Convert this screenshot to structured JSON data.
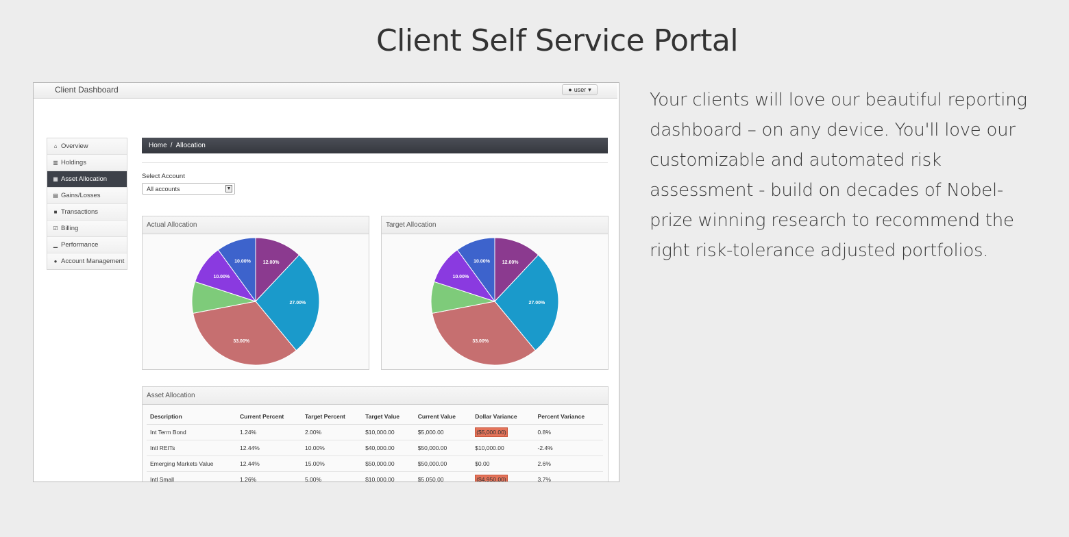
{
  "page": {
    "title": "Client Self Service Portal",
    "pitch": "Your clients will love our beautiful reporting dashboard – on any device. You'll love our customizable and automated risk assessment - build on decades of Nobel-prize winning research to recommend the right risk-tolerance adjusted portfolios."
  },
  "app": {
    "brand": "Client Dashboard",
    "user_label": "user"
  },
  "sidebar": {
    "items": [
      {
        "label": "Overview",
        "icon": "home-icon",
        "glyph": "⌂"
      },
      {
        "label": "Holdings",
        "icon": "bank-icon",
        "glyph": "▥"
      },
      {
        "label": "Asset Allocation",
        "icon": "grid-icon",
        "glyph": "▦"
      },
      {
        "label": "Gains/Losses",
        "icon": "list-icon",
        "glyph": "▤"
      },
      {
        "label": "Transactions",
        "icon": "book-icon",
        "glyph": "■"
      },
      {
        "label": "Billing",
        "icon": "check-icon",
        "glyph": "☑"
      },
      {
        "label": "Performance",
        "icon": "signal-icon",
        "glyph": "▁"
      },
      {
        "label": "Account Management",
        "icon": "user-icon",
        "glyph": "●"
      }
    ],
    "active_index": 2
  },
  "breadcrumb": {
    "home": "Home",
    "separator": "/",
    "current": "Allocation"
  },
  "account_select": {
    "label": "Select Account",
    "value": "All accounts"
  },
  "panels": {
    "actual": "Actual Allocation",
    "target": "Target Allocation",
    "table": "Asset Allocation"
  },
  "colors": {
    "slices": [
      "#8b3a8f",
      "#1a9acb",
      "#c66f70",
      "#7ecb7a",
      "#8a3ae0",
      "#3d63cc"
    ],
    "negative": "#e4745b",
    "active_nav": "#3d4149"
  },
  "chart_data": [
    {
      "type": "pie",
      "title": "Actual Allocation",
      "values": [
        12,
        27,
        33,
        8,
        10,
        10
      ],
      "labels": [
        "12.00%",
        "27.00%",
        "33.00%",
        "",
        "10.00%",
        "10.00%"
      ]
    },
    {
      "type": "pie",
      "title": "Target Allocation",
      "values": [
        12,
        27,
        33,
        8,
        10,
        10
      ],
      "labels": [
        "12.00%",
        "27.00%",
        "33.00%",
        "",
        "10.00%",
        "10.00%"
      ]
    }
  ],
  "table": {
    "headers": [
      "Description",
      "Current Percent",
      "Target Percent",
      "Target Value",
      "Current Value",
      "Dollar Variance",
      "Percent Variance"
    ],
    "rows": [
      [
        "Int Term Bond",
        "1.24%",
        "2.00%",
        "$10,000.00",
        "$5,000.00",
        "($5,000.00)",
        "0.8%"
      ],
      [
        "Intl REITs",
        "12.44%",
        "10.00%",
        "$40,000.00",
        "$50,000.00",
        "$10,000.00",
        "-2.4%"
      ],
      [
        "Emerging Markets Value",
        "12.44%",
        "15.00%",
        "$50,000.00",
        "$50,000.00",
        "$0.00",
        "2.6%"
      ],
      [
        "Intl Small",
        "1.26%",
        "5.00%",
        "$10,000.00",
        "$5,050.00",
        "($4,950.00)",
        "3.7%"
      ]
    ]
  }
}
